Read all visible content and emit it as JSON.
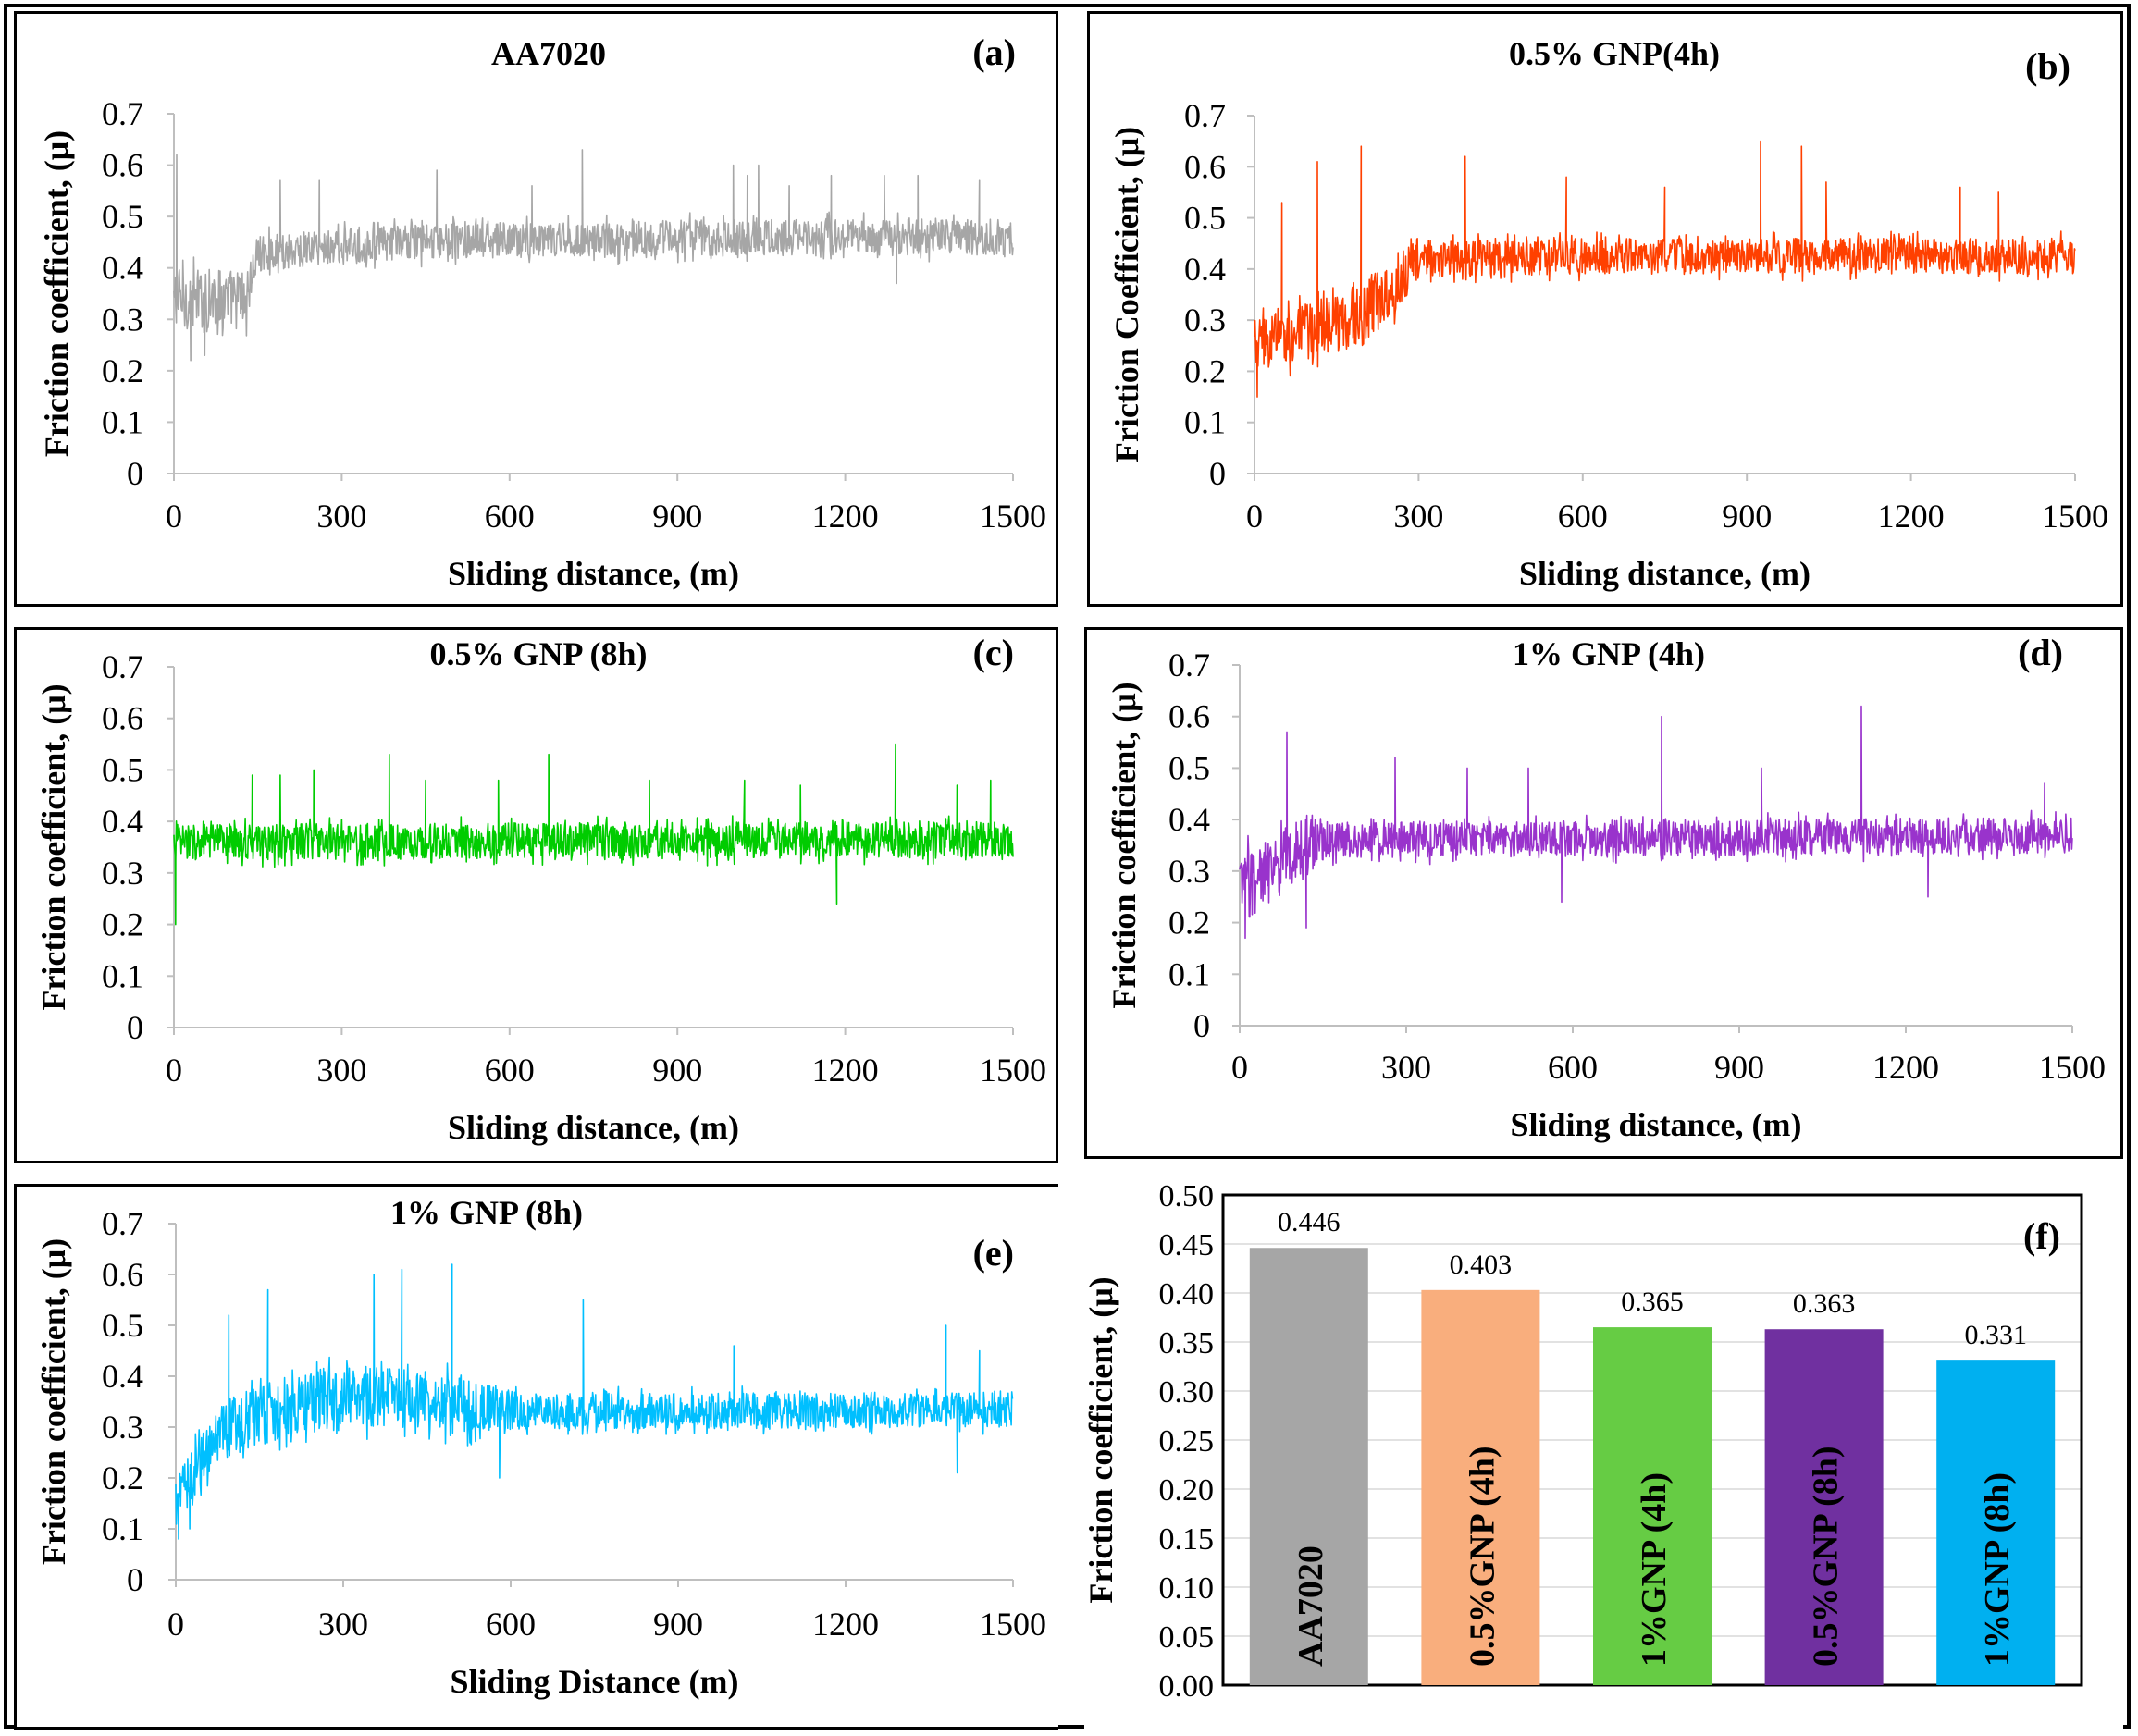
{
  "chart_data": [
    {
      "type": "line",
      "panel_label": "(a)",
      "title": "AA7020",
      "xlabel": "Sliding distance, (m)",
      "ylabel": "Friction coefficient, (μ)",
      "xlim": [
        0,
        1500
      ],
      "ylim": [
        0,
        0.7
      ],
      "x_ticks": [
        "0",
        "300",
        "600",
        "900",
        "1200",
        "1500"
      ],
      "y_ticks": [
        "0",
        "0.1",
        "0.2",
        "0.3",
        "0.4",
        "0.5",
        "0.6",
        "0.7"
      ],
      "series": [
        {
          "name": "AA7020",
          "color": "#a6a6a6",
          "profile": [
            [
              0,
              0.34
            ],
            [
              130,
              0.34
            ],
            [
              150,
              0.43
            ],
            [
              400,
              0.45
            ],
            [
              1000,
              0.46
            ],
            [
              1500,
              0.46
            ]
          ],
          "noise": [
            [
              0,
              0.06
            ],
            [
              130,
              0.06
            ],
            [
              150,
              0.035
            ],
            [
              1500,
              0.035
            ]
          ],
          "spikes": [
            [
              5,
              0.62
            ],
            [
              30,
              0.22
            ],
            [
              55,
              0.23
            ],
            [
              190,
              0.57
            ],
            [
              260,
              0.57
            ],
            [
              470,
              0.59
            ],
            [
              640,
              0.56
            ],
            [
              730,
              0.63
            ],
            [
              1000,
              0.6
            ],
            [
              1025,
              0.58
            ],
            [
              1045,
              0.6
            ],
            [
              1100,
              0.56
            ],
            [
              1175,
              0.58
            ],
            [
              1270,
              0.58
            ],
            [
              1292,
              0.37
            ],
            [
              1330,
              0.58
            ],
            [
              1440,
              0.57
            ]
          ]
        }
      ]
    },
    {
      "type": "line",
      "panel_label": "(b)",
      "title": "0.5% GNP(4h)",
      "xlabel": "Sliding distance, (m)",
      "ylabel": "Friction Coefficient, (μ)",
      "xlim": [
        0,
        1500
      ],
      "ylim": [
        0,
        0.7
      ],
      "x_ticks": [
        "0",
        "300",
        "600",
        "900",
        "1200",
        "1500"
      ],
      "y_ticks": [
        "0",
        "0.1",
        "0.2",
        "0.3",
        "0.4",
        "0.5",
        "0.6",
        "0.7"
      ],
      "series": [
        {
          "name": "0.5% GNP(4h)",
          "color": "#ff4000",
          "profile": [
            [
              0,
              0.25
            ],
            [
              100,
              0.28
            ],
            [
              200,
              0.31
            ],
            [
              300,
              0.42
            ],
            [
              600,
              0.425
            ],
            [
              1500,
              0.425
            ]
          ],
          "noise": [
            [
              0,
              0.055
            ],
            [
              250,
              0.06
            ],
            [
              320,
              0.035
            ],
            [
              1500,
              0.035
            ]
          ],
          "spikes": [
            [
              5,
              0.15
            ],
            [
              50,
              0.53
            ],
            [
              115,
              0.61
            ],
            [
              195,
              0.64
            ],
            [
              385,
              0.62
            ],
            [
              570,
              0.58
            ],
            [
              750,
              0.56
            ],
            [
              925,
              0.65
            ],
            [
              1000,
              0.64
            ],
            [
              1045,
              0.57
            ],
            [
              1290,
              0.56
            ],
            [
              1360,
              0.55
            ]
          ]
        }
      ]
    },
    {
      "type": "line",
      "panel_label": "(c)",
      "title": "0.5% GNP (8h)",
      "xlabel": "Sliding distance, (m)",
      "ylabel": "Friction coefficient, (μ)",
      "xlim": [
        0,
        1500
      ],
      "ylim": [
        0,
        0.7
      ],
      "x_ticks": [
        "0",
        "300",
        "600",
        "900",
        "1200",
        "1500"
      ],
      "y_ticks": [
        "0",
        "0.1",
        "0.2",
        "0.3",
        "0.4",
        "0.5",
        "0.6",
        "0.7"
      ],
      "series": [
        {
          "name": "0.5% GNP (8h)",
          "color": "#00cc00",
          "profile": [
            [
              0,
              0.36
            ],
            [
              1500,
              0.365
            ]
          ],
          "noise": [
            [
              0,
              0.035
            ],
            [
              1500,
              0.035
            ]
          ],
          "spikes": [
            [
              3,
              0.2
            ],
            [
              140,
              0.49
            ],
            [
              190,
              0.49
            ],
            [
              250,
              0.5
            ],
            [
              385,
              0.53
            ],
            [
              450,
              0.48
            ],
            [
              580,
              0.48
            ],
            [
              670,
              0.53
            ],
            [
              850,
              0.48
            ],
            [
              1020,
              0.48
            ],
            [
              1120,
              0.47
            ],
            [
              1185,
              0.24
            ],
            [
              1290,
              0.55
            ],
            [
              1400,
              0.47
            ],
            [
              1460,
              0.48
            ]
          ]
        }
      ]
    },
    {
      "type": "line",
      "panel_label": "(d)",
      "title": "1% GNP (4h)",
      "xlabel": "Sliding distance, (m)",
      "ylabel": "Friction coefficient, (μ)",
      "xlim": [
        0,
        1500
      ],
      "ylim": [
        0,
        0.7
      ],
      "x_ticks": [
        "0",
        "300",
        "600",
        "900",
        "1200",
        "1500"
      ],
      "y_ticks": [
        "0",
        "0.1",
        "0.2",
        "0.3",
        "0.4",
        "0.5",
        "0.6",
        "0.7"
      ],
      "series": [
        {
          "name": "1% GNP (4h)",
          "color": "#9933cc",
          "profile": [
            [
              0,
              0.27
            ],
            [
              60,
              0.3
            ],
            [
              120,
              0.36
            ],
            [
              1500,
              0.37
            ]
          ],
          "noise": [
            [
              0,
              0.07
            ],
            [
              120,
              0.06
            ],
            [
              160,
              0.035
            ],
            [
              1500,
              0.035
            ]
          ],
          "spikes": [
            [
              10,
              0.17
            ],
            [
              85,
              0.57
            ],
            [
              120,
              0.19
            ],
            [
              280,
              0.52
            ],
            [
              410,
              0.5
            ],
            [
              520,
              0.5
            ],
            [
              580,
              0.24
            ],
            [
              760,
              0.6
            ],
            [
              940,
              0.5
            ],
            [
              1120,
              0.62
            ],
            [
              1240,
              0.25
            ],
            [
              1450,
              0.47
            ]
          ]
        }
      ]
    },
    {
      "type": "line",
      "panel_label": "(e)",
      "title": "1% GNP (8h)",
      "xlabel": "Sliding Distance (m)",
      "ylabel": "Friction coefficient, (μ)",
      "xlim": [
        0,
        1500
      ],
      "ylim": [
        0,
        0.7
      ],
      "x_ticks": [
        "0",
        "300",
        "600",
        "900",
        "1200",
        "1500"
      ],
      "y_ticks": [
        "0",
        "0.1",
        "0.2",
        "0.3",
        "0.4",
        "0.5",
        "0.6",
        "0.7"
      ],
      "series": [
        {
          "name": "1% GNP (8h)",
          "color": "#00bfff",
          "profile": [
            [
              0,
              0.15
            ],
            [
              50,
              0.25
            ],
            [
              100,
              0.3
            ],
            [
              200,
              0.34
            ],
            [
              300,
              0.36
            ],
            [
              400,
              0.36
            ],
            [
              600,
              0.33
            ],
            [
              1500,
              0.335
            ]
          ],
          "noise": [
            [
              0,
              0.05
            ],
            [
              100,
              0.06
            ],
            [
              500,
              0.06
            ],
            [
              650,
              0.035
            ],
            [
              1500,
              0.035
            ]
          ],
          "spikes": [
            [
              5,
              0.08
            ],
            [
              25,
              0.1
            ],
            [
              95,
              0.52
            ],
            [
              165,
              0.57
            ],
            [
              355,
              0.6
            ],
            [
              405,
              0.61
            ],
            [
              495,
              0.62
            ],
            [
              580,
              0.2
            ],
            [
              730,
              0.55
            ],
            [
              1000,
              0.46
            ],
            [
              1380,
              0.5
            ],
            [
              1400,
              0.21
            ],
            [
              1440,
              0.45
            ]
          ]
        }
      ]
    },
    {
      "type": "bar",
      "panel_label": "(f)",
      "ylabel": "Friction coefficient, (μ)",
      "ylim": [
        0,
        0.5
      ],
      "y_ticks": [
        "0.00",
        "0.05",
        "0.10",
        "0.15",
        "0.20",
        "0.25",
        "0.30",
        "0.35",
        "0.40",
        "0.45",
        "0.50"
      ],
      "categories": [
        "AA7020",
        "0.5%GNP (4h)",
        "1%GNP (4h)",
        "0.5%GNP (8h)",
        "1%GNP (8h)"
      ],
      "values": [
        0.446,
        0.403,
        0.365,
        0.363,
        0.331
      ],
      "value_labels": [
        "0.446",
        "0.403",
        "0.365",
        "0.363",
        "0.331"
      ],
      "colors": [
        "#a6a6a6",
        "#f9ae7d",
        "#66cc44",
        "#7030a0",
        "#00b0f0"
      ],
      "grid": true
    }
  ]
}
